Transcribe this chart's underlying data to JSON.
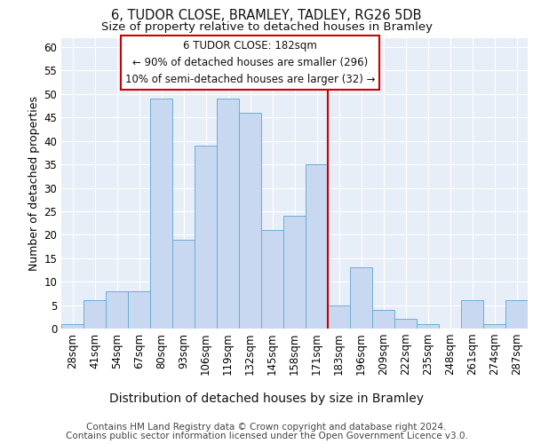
{
  "title": "6, TUDOR CLOSE, BRAMLEY, TADLEY, RG26 5DB",
  "subtitle": "Size of property relative to detached houses in Bramley",
  "xlabel": "Distribution of detached houses by size in Bramley",
  "ylabel": "Number of detached properties",
  "bar_color": "#c8d8f0",
  "bar_edge_color": "#6baed6",
  "background_color": "#e8eef8",
  "grid_color": "#ffffff",
  "categories": [
    "28sqm",
    "41sqm",
    "54sqm",
    "67sqm",
    "80sqm",
    "93sqm",
    "106sqm",
    "119sqm",
    "132sqm",
    "145sqm",
    "158sqm",
    "171sqm",
    "183sqm",
    "196sqm",
    "209sqm",
    "222sqm",
    "235sqm",
    "248sqm",
    "261sqm",
    "274sqm",
    "287sqm"
  ],
  "values": [
    1,
    6,
    8,
    8,
    49,
    19,
    39,
    49,
    46,
    21,
    24,
    35,
    5,
    13,
    4,
    2,
    1,
    0,
    6,
    1,
    6
  ],
  "ylim": [
    0,
    62
  ],
  "yticks": [
    0,
    5,
    10,
    15,
    20,
    25,
    30,
    35,
    40,
    45,
    50,
    55,
    60
  ],
  "marker_label": "6 TUDOR CLOSE: 182sqm",
  "annotation_line1": "← 90% of detached houses are smaller (296)",
  "annotation_line2": "10% of semi-detached houses are larger (32) →",
  "annotation_box_color": "#ffffff",
  "annotation_border_color": "#cc0000",
  "marker_line_color": "#cc0000",
  "footer1": "Contains HM Land Registry data © Crown copyright and database right 2024.",
  "footer2": "Contains public sector information licensed under the Open Government Licence v3.0.",
  "title_fontsize": 10.5,
  "subtitle_fontsize": 9.5,
  "ylabel_fontsize": 9,
  "xlabel_fontsize": 10,
  "tick_fontsize": 8.5,
  "annotation_fontsize": 8.5,
  "footer_fontsize": 7.5
}
